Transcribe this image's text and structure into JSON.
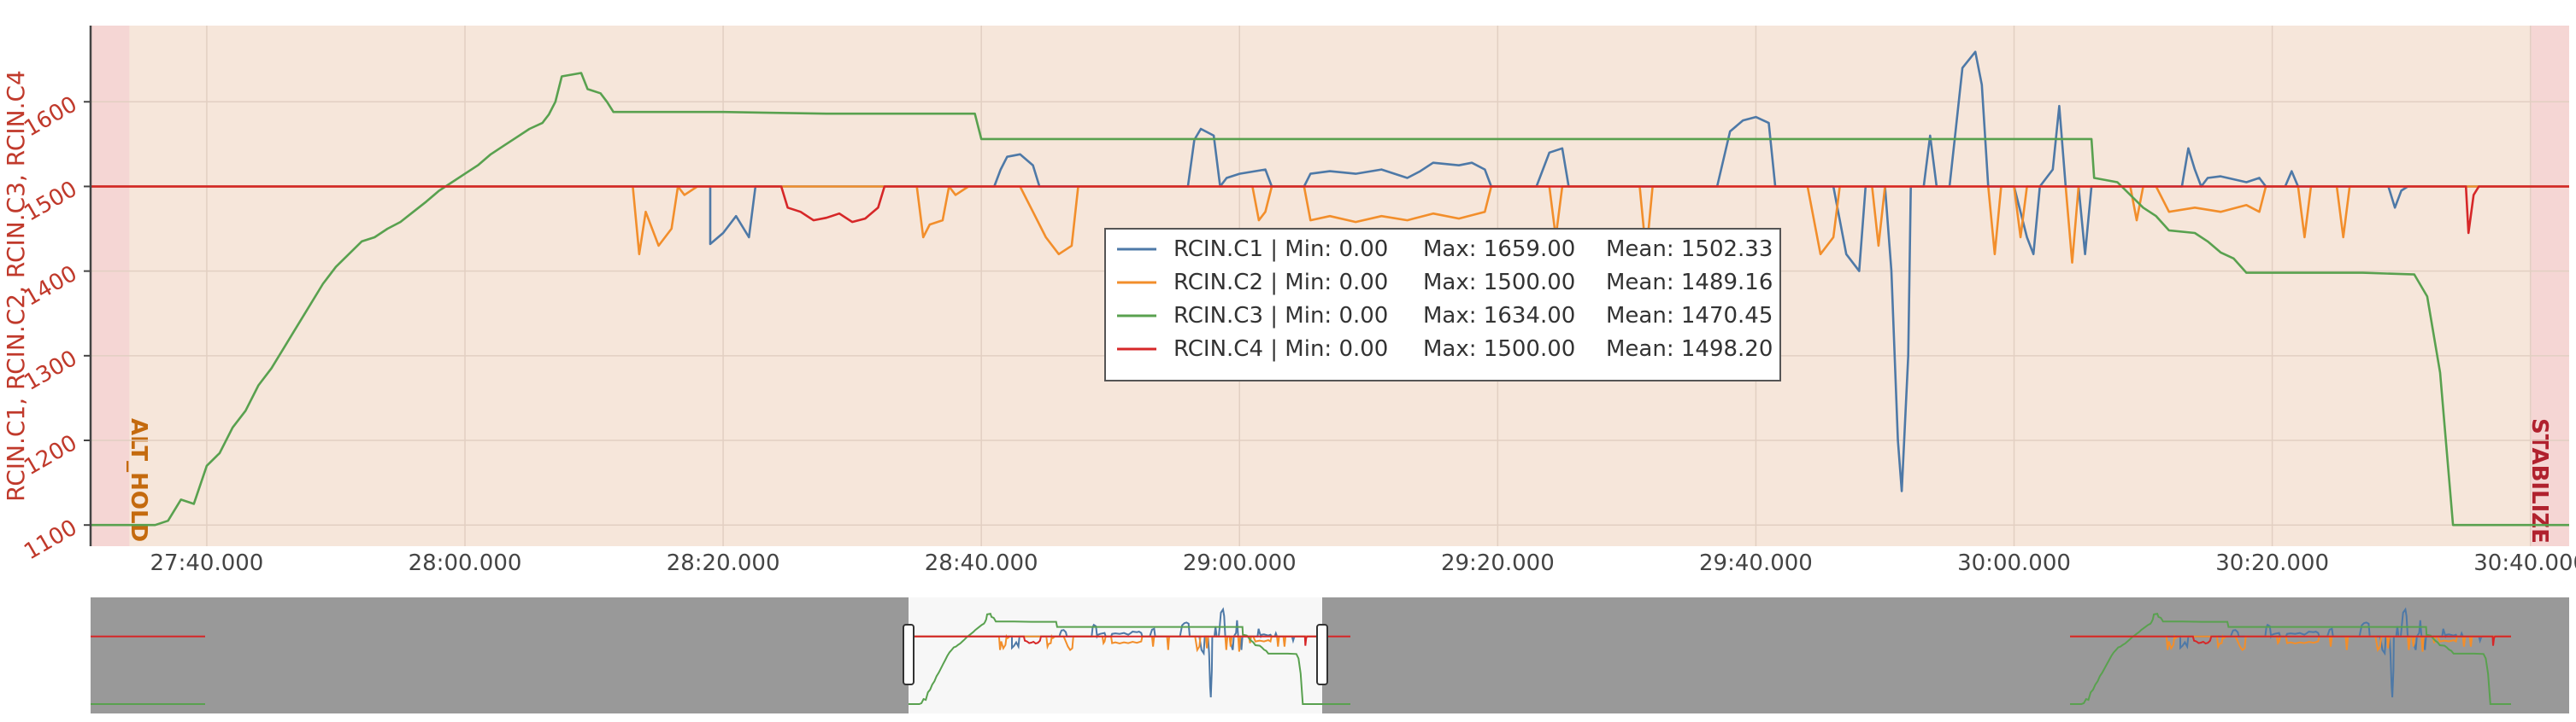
{
  "chart_data": {
    "type": "line",
    "title": "",
    "xlabel": "",
    "ylabel": "RCIN.C1, RCIN.C2, RCIN.C3, RCIN.C4",
    "ylim": [
      1075,
      1690
    ],
    "xlim_seconds": [
      1651,
      1843
    ],
    "yticks": [
      1100,
      1200,
      1300,
      1400,
      1500,
      1600
    ],
    "xticks": [
      {
        "t": 1660,
        "label": "27:40.000"
      },
      {
        "t": 1680,
        "label": "28:00.000"
      },
      {
        "t": 1700,
        "label": "28:20.000"
      },
      {
        "t": 1720,
        "label": "28:40.000"
      },
      {
        "t": 1740,
        "label": "29:00.000"
      },
      {
        "t": 1760,
        "label": "29:20.000"
      },
      {
        "t": 1780,
        "label": "29:40.000"
      },
      {
        "t": 1800,
        "label": "30:00.000"
      },
      {
        "t": 1820,
        "label": "30:20.000"
      },
      {
        "t": 1840,
        "label": "30:40.000"
      }
    ],
    "x_unit_note": "",
    "grid": true,
    "background": "#f6e6da",
    "modes": [
      {
        "name": "ALT_HOLD",
        "start": 1654,
        "color": "#c46a0e",
        "band_color": "#f4d2d2"
      },
      {
        "name": "STABILIZE",
        "start": 1840,
        "color": "#b0212e",
        "band_color": "#f4d2d2"
      }
    ],
    "legend": {
      "position": "center",
      "entries": [
        {
          "name": "RCIN.C1",
          "color": "#4e79a7",
          "text": "RCIN.C1 | Min: 0.00",
          "max": "Max: 1659.00",
          "mean": "Mean: 1502.33"
        },
        {
          "name": "RCIN.C2",
          "color": "#f28e2b",
          "text": "RCIN.C2 | Min: 0.00",
          "max": "Max: 1500.00",
          "mean": "Mean: 1489.16"
        },
        {
          "name": "RCIN.C3",
          "color": "#59a14f",
          "text": "RCIN.C3 | Min: 0.00",
          "max": "Max: 1634.00",
          "mean": "Mean: 1470.45"
        },
        {
          "name": "RCIN.C4",
          "color": "#d62728",
          "text": "RCIN.C4 | Min: 0.00",
          "max": "Max: 1500.00",
          "mean": "Mean: 1498.20"
        }
      ]
    },
    "series": [
      {
        "name": "RCIN.C1",
        "color": "#4e79a7",
        "points": [
          [
            1651,
            1500
          ],
          [
            1699,
            1500
          ],
          [
            1699,
            1432
          ],
          [
            1700,
            1445
          ],
          [
            1701,
            1465
          ],
          [
            1702,
            1440
          ],
          [
            1702.5,
            1500
          ],
          [
            1721,
            1500
          ],
          [
            1721.5,
            1520
          ],
          [
            1722,
            1535
          ],
          [
            1723,
            1538
          ],
          [
            1724,
            1525
          ],
          [
            1724.5,
            1500
          ],
          [
            1736,
            1500
          ],
          [
            1736.5,
            1555
          ],
          [
            1737,
            1568
          ],
          [
            1738,
            1560
          ],
          [
            1738.5,
            1500
          ],
          [
            1739,
            1510
          ],
          [
            1740,
            1515
          ],
          [
            1742,
            1520
          ],
          [
            1742.5,
            1500
          ],
          [
            1745,
            1500
          ],
          [
            1745.5,
            1515
          ],
          [
            1747,
            1518
          ],
          [
            1749,
            1515
          ],
          [
            1751,
            1520
          ],
          [
            1753,
            1510
          ],
          [
            1754,
            1518
          ],
          [
            1755,
            1528
          ],
          [
            1757,
            1525
          ],
          [
            1758,
            1528
          ],
          [
            1759,
            1520
          ],
          [
            1759.5,
            1500
          ],
          [
            1763,
            1500
          ],
          [
            1764,
            1540
          ],
          [
            1765,
            1545
          ],
          [
            1765.5,
            1500
          ],
          [
            1777,
            1500
          ],
          [
            1778,
            1565
          ],
          [
            1779,
            1578
          ],
          [
            1780,
            1582
          ],
          [
            1781,
            1575
          ],
          [
            1781.5,
            1500
          ],
          [
            1786,
            1500
          ],
          [
            1787,
            1420
          ],
          [
            1788,
            1400
          ],
          [
            1788.5,
            1500
          ],
          [
            1790,
            1500
          ],
          [
            1790.5,
            1400
          ],
          [
            1791,
            1200
          ],
          [
            1791.3,
            1140
          ],
          [
            1791.8,
            1300
          ],
          [
            1792,
            1500
          ],
          [
            1793,
            1500
          ],
          [
            1793.5,
            1560
          ],
          [
            1794,
            1500
          ],
          [
            1795,
            1500
          ],
          [
            1795.5,
            1570
          ],
          [
            1796,
            1640
          ],
          [
            1797,
            1659
          ],
          [
            1797.5,
            1620
          ],
          [
            1798,
            1500
          ],
          [
            1800,
            1500
          ],
          [
            1801,
            1440
          ],
          [
            1801.5,
            1420
          ],
          [
            1802,
            1500
          ],
          [
            1803,
            1520
          ],
          [
            1803.5,
            1595
          ],
          [
            1804,
            1500
          ],
          [
            1805,
            1500
          ],
          [
            1805.5,
            1420
          ],
          [
            1806,
            1500
          ],
          [
            1813,
            1500
          ],
          [
            1813.5,
            1545
          ],
          [
            1814,
            1520
          ],
          [
            1814.5,
            1500
          ],
          [
            1815,
            1510
          ],
          [
            1816,
            1512
          ],
          [
            1818,
            1505
          ],
          [
            1819,
            1510
          ],
          [
            1819.5,
            1500
          ],
          [
            1821,
            1500
          ],
          [
            1821.5,
            1518
          ],
          [
            1822,
            1500
          ],
          [
            1829,
            1500
          ],
          [
            1829.5,
            1475
          ],
          [
            1830,
            1495
          ],
          [
            1830.5,
            1500
          ],
          [
            1843,
            1500
          ]
        ]
      },
      {
        "name": "RCIN.C2",
        "color": "#f28e2b",
        "points": [
          [
            1651,
            1500
          ],
          [
            1693,
            1500
          ],
          [
            1693.5,
            1420
          ],
          [
            1694,
            1470
          ],
          [
            1695,
            1430
          ],
          [
            1696,
            1450
          ],
          [
            1696.5,
            1500
          ],
          [
            1697,
            1490
          ],
          [
            1698,
            1500
          ],
          [
            1715,
            1500
          ],
          [
            1715.5,
            1440
          ],
          [
            1716,
            1455
          ],
          [
            1717,
            1460
          ],
          [
            1717.5,
            1500
          ],
          [
            1718,
            1490
          ],
          [
            1719,
            1500
          ],
          [
            1723,
            1500
          ],
          [
            1724,
            1470
          ],
          [
            1725,
            1440
          ],
          [
            1726,
            1420
          ],
          [
            1727,
            1430
          ],
          [
            1727.5,
            1500
          ],
          [
            1741,
            1500
          ],
          [
            1741.5,
            1460
          ],
          [
            1742,
            1470
          ],
          [
            1742.5,
            1500
          ],
          [
            1745,
            1500
          ],
          [
            1745.5,
            1460
          ],
          [
            1747,
            1465
          ],
          [
            1749,
            1458
          ],
          [
            1751,
            1465
          ],
          [
            1753,
            1460
          ],
          [
            1755,
            1468
          ],
          [
            1757,
            1462
          ],
          [
            1759,
            1470
          ],
          [
            1759.5,
            1500
          ],
          [
            1764,
            1500
          ],
          [
            1764.5,
            1440
          ],
          [
            1765,
            1500
          ],
          [
            1771,
            1500
          ],
          [
            1771.5,
            1420
          ],
          [
            1772,
            1500
          ],
          [
            1784,
            1500
          ],
          [
            1785,
            1420
          ],
          [
            1786,
            1440
          ],
          [
            1786.5,
            1500
          ],
          [
            1789,
            1500
          ],
          [
            1789.5,
            1430
          ],
          [
            1790,
            1500
          ],
          [
            1798,
            1500
          ],
          [
            1798.5,
            1420
          ],
          [
            1799,
            1500
          ],
          [
            1800,
            1500
          ],
          [
            1800.5,
            1440
          ],
          [
            1801,
            1500
          ],
          [
            1804,
            1500
          ],
          [
            1804.5,
            1410
          ],
          [
            1805,
            1500
          ],
          [
            1809,
            1500
          ],
          [
            1809.5,
            1460
          ],
          [
            1810,
            1500
          ],
          [
            1811,
            1500
          ],
          [
            1812,
            1470
          ],
          [
            1814,
            1475
          ],
          [
            1816,
            1470
          ],
          [
            1818,
            1478
          ],
          [
            1819,
            1470
          ],
          [
            1819.5,
            1500
          ],
          [
            1822,
            1500
          ],
          [
            1822.5,
            1440
          ],
          [
            1823,
            1500
          ],
          [
            1825,
            1500
          ],
          [
            1825.5,
            1440
          ],
          [
            1826,
            1500
          ],
          [
            1843,
            1500
          ]
        ]
      },
      {
        "name": "RCIN.C3",
        "color": "#59a14f",
        "points": [
          [
            1651,
            1100
          ],
          [
            1656,
            1100
          ],
          [
            1657,
            1105
          ],
          [
            1658,
            1130
          ],
          [
            1659,
            1125
          ],
          [
            1660,
            1170
          ],
          [
            1661,
            1185
          ],
          [
            1662,
            1215
          ],
          [
            1663,
            1235
          ],
          [
            1664,
            1265
          ],
          [
            1665,
            1285
          ],
          [
            1666,
            1310
          ],
          [
            1667,
            1335
          ],
          [
            1668,
            1360
          ],
          [
            1669,
            1385
          ],
          [
            1670,
            1405
          ],
          [
            1671,
            1420
          ],
          [
            1672,
            1435
          ],
          [
            1673,
            1440
          ],
          [
            1674,
            1450
          ],
          [
            1675,
            1458
          ],
          [
            1676,
            1470
          ],
          [
            1677,
            1482
          ],
          [
            1678,
            1495
          ],
          [
            1679,
            1505
          ],
          [
            1680,
            1515
          ],
          [
            1681,
            1525
          ],
          [
            1682,
            1538
          ],
          [
            1683,
            1548
          ],
          [
            1684,
            1558
          ],
          [
            1685,
            1568
          ],
          [
            1686,
            1575
          ],
          [
            1686.5,
            1585
          ],
          [
            1687,
            1600
          ],
          [
            1687.5,
            1630
          ],
          [
            1689,
            1634
          ],
          [
            1689.5,
            1615
          ],
          [
            1690.5,
            1610
          ],
          [
            1691,
            1600
          ],
          [
            1691.5,
            1588
          ],
          [
            1700,
            1588
          ],
          [
            1708,
            1586
          ],
          [
            1719.5,
            1586
          ],
          [
            1720,
            1556
          ],
          [
            1753,
            1556
          ],
          [
            1754,
            1556
          ],
          [
            1803,
            1556
          ],
          [
            1806,
            1556
          ],
          [
            1806.2,
            1510
          ],
          [
            1808,
            1505
          ],
          [
            1810,
            1475
          ],
          [
            1811,
            1465
          ],
          [
            1812,
            1448
          ],
          [
            1814,
            1445
          ],
          [
            1815,
            1435
          ],
          [
            1816,
            1422
          ],
          [
            1817,
            1415
          ],
          [
            1818,
            1398
          ],
          [
            1821,
            1398
          ],
          [
            1827,
            1398
          ],
          [
            1831,
            1396
          ],
          [
            1832,
            1370
          ],
          [
            1833,
            1280
          ],
          [
            1834,
            1100
          ],
          [
            1843,
            1100
          ]
        ]
      },
      {
        "name": "RCIN.C4",
        "color": "#d62728",
        "points": [
          [
            1651,
            1500
          ],
          [
            1704.5,
            1500
          ],
          [
            1705,
            1475
          ],
          [
            1706,
            1470
          ],
          [
            1707,
            1460
          ],
          [
            1708,
            1463
          ],
          [
            1709,
            1468
          ],
          [
            1710,
            1458
          ],
          [
            1711,
            1462
          ],
          [
            1712,
            1475
          ],
          [
            1712.5,
            1500
          ],
          [
            1835,
            1500
          ],
          [
            1835.2,
            1445
          ],
          [
            1835.6,
            1490
          ],
          [
            1836,
            1500
          ],
          [
            1843,
            1500
          ]
        ]
      }
    ]
  }
}
